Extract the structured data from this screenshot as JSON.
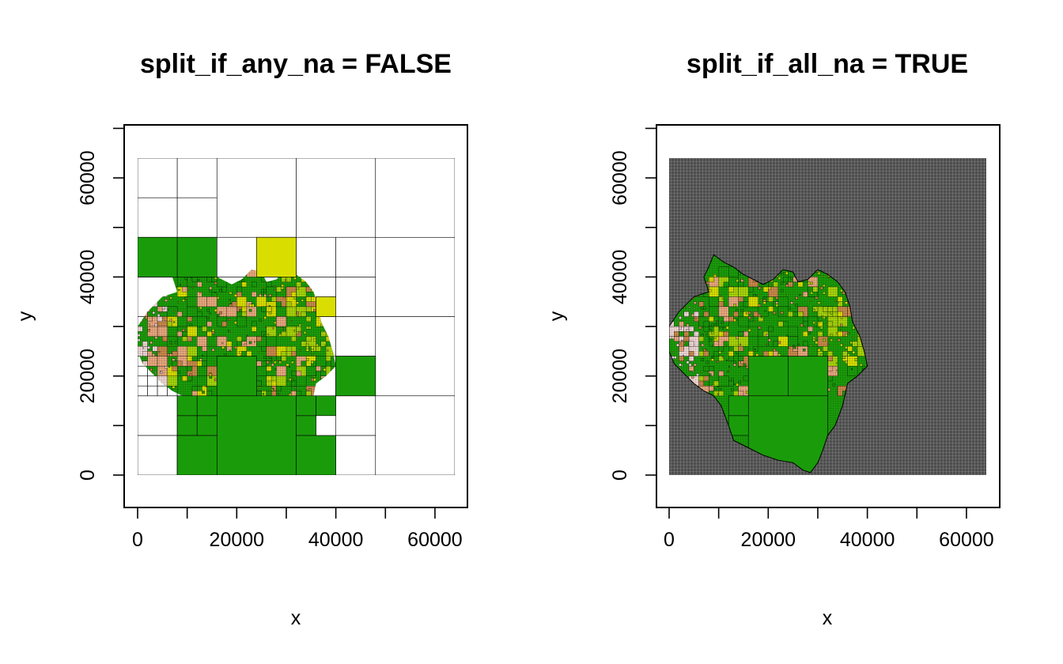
{
  "colors": {
    "background": "#ffffff",
    "dark_green": "#1a9c0a",
    "yellow_green": "#a6d40a",
    "yellow": "#d9de00",
    "orange_brown": "#c9884a",
    "salmon": "#e8a77d",
    "light_pink": "#f0d6d6",
    "grid_gray": "#4d4d4d",
    "grid_line": "#9a9a9a"
  },
  "chart_data": [
    {
      "type": "heatmap",
      "title": "split_if_any_na = FALSE",
      "xlabel": "x",
      "ylabel": "y",
      "xlim": [
        0,
        64000
      ],
      "ylim": [
        0,
        64000
      ],
      "x_ticks": [
        0,
        20000,
        40000,
        60000
      ],
      "y_ticks": [
        0,
        20000,
        40000,
        60000
      ],
      "x_tick_labels": [
        "0",
        "20000",
        "40000",
        "60000"
      ],
      "y_tick_labels": [
        "0",
        "20000",
        "40000",
        "60000"
      ],
      "extent": [
        0,
        64000,
        0,
        64000
      ],
      "background_quadtree": "white cells with black outlines",
      "cells": [
        {
          "x0": 0,
          "x1": 8000,
          "y0": 40000,
          "y1": 48000,
          "fill": "dark_green"
        },
        {
          "x0": 8000,
          "x1": 16000,
          "y0": 40000,
          "y1": 48000,
          "fill": "dark_green"
        },
        {
          "x0": 24000,
          "x1": 32000,
          "y0": 40000,
          "y1": 48000,
          "fill": "yellow"
        },
        {
          "x0": 16000,
          "x1": 32000,
          "y0": 0,
          "y1": 16000,
          "fill": "dark_green"
        },
        {
          "x0": 8000,
          "x1": 16000,
          "y0": 0,
          "y1": 8000,
          "fill": "dark_green"
        },
        {
          "x0": 32000,
          "x1": 40000,
          "y0": 0,
          "y1": 8000,
          "fill": "dark_green"
        },
        {
          "x0": 40000,
          "x1": 48000,
          "y0": 16000,
          "y1": 24000,
          "fill": "dark_green"
        },
        {
          "x0": 36000,
          "x1": 40000,
          "y0": 32000,
          "y1": 36000,
          "fill": "yellow"
        }
      ]
    },
    {
      "type": "heatmap",
      "title": "split_if_all_na = TRUE",
      "xlabel": "x",
      "ylabel": "y",
      "xlim": [
        0,
        64000
      ],
      "ylim": [
        0,
        64000
      ],
      "x_ticks": [
        0,
        20000,
        40000,
        60000
      ],
      "y_ticks": [
        0,
        20000,
        40000,
        60000
      ],
      "x_tick_labels": [
        "0",
        "20000",
        "40000",
        "60000"
      ],
      "y_tick_labels": [
        "0",
        "20000",
        "40000",
        "60000"
      ],
      "extent": [
        0,
        64000,
        0,
        64000
      ],
      "background_quadtree": "fine gray grid of NA cells",
      "cells": [
        {
          "x0": 16000,
          "x1": 32000,
          "y0": 0,
          "y1": 16000,
          "fill": "dark_green"
        }
      ]
    }
  ]
}
